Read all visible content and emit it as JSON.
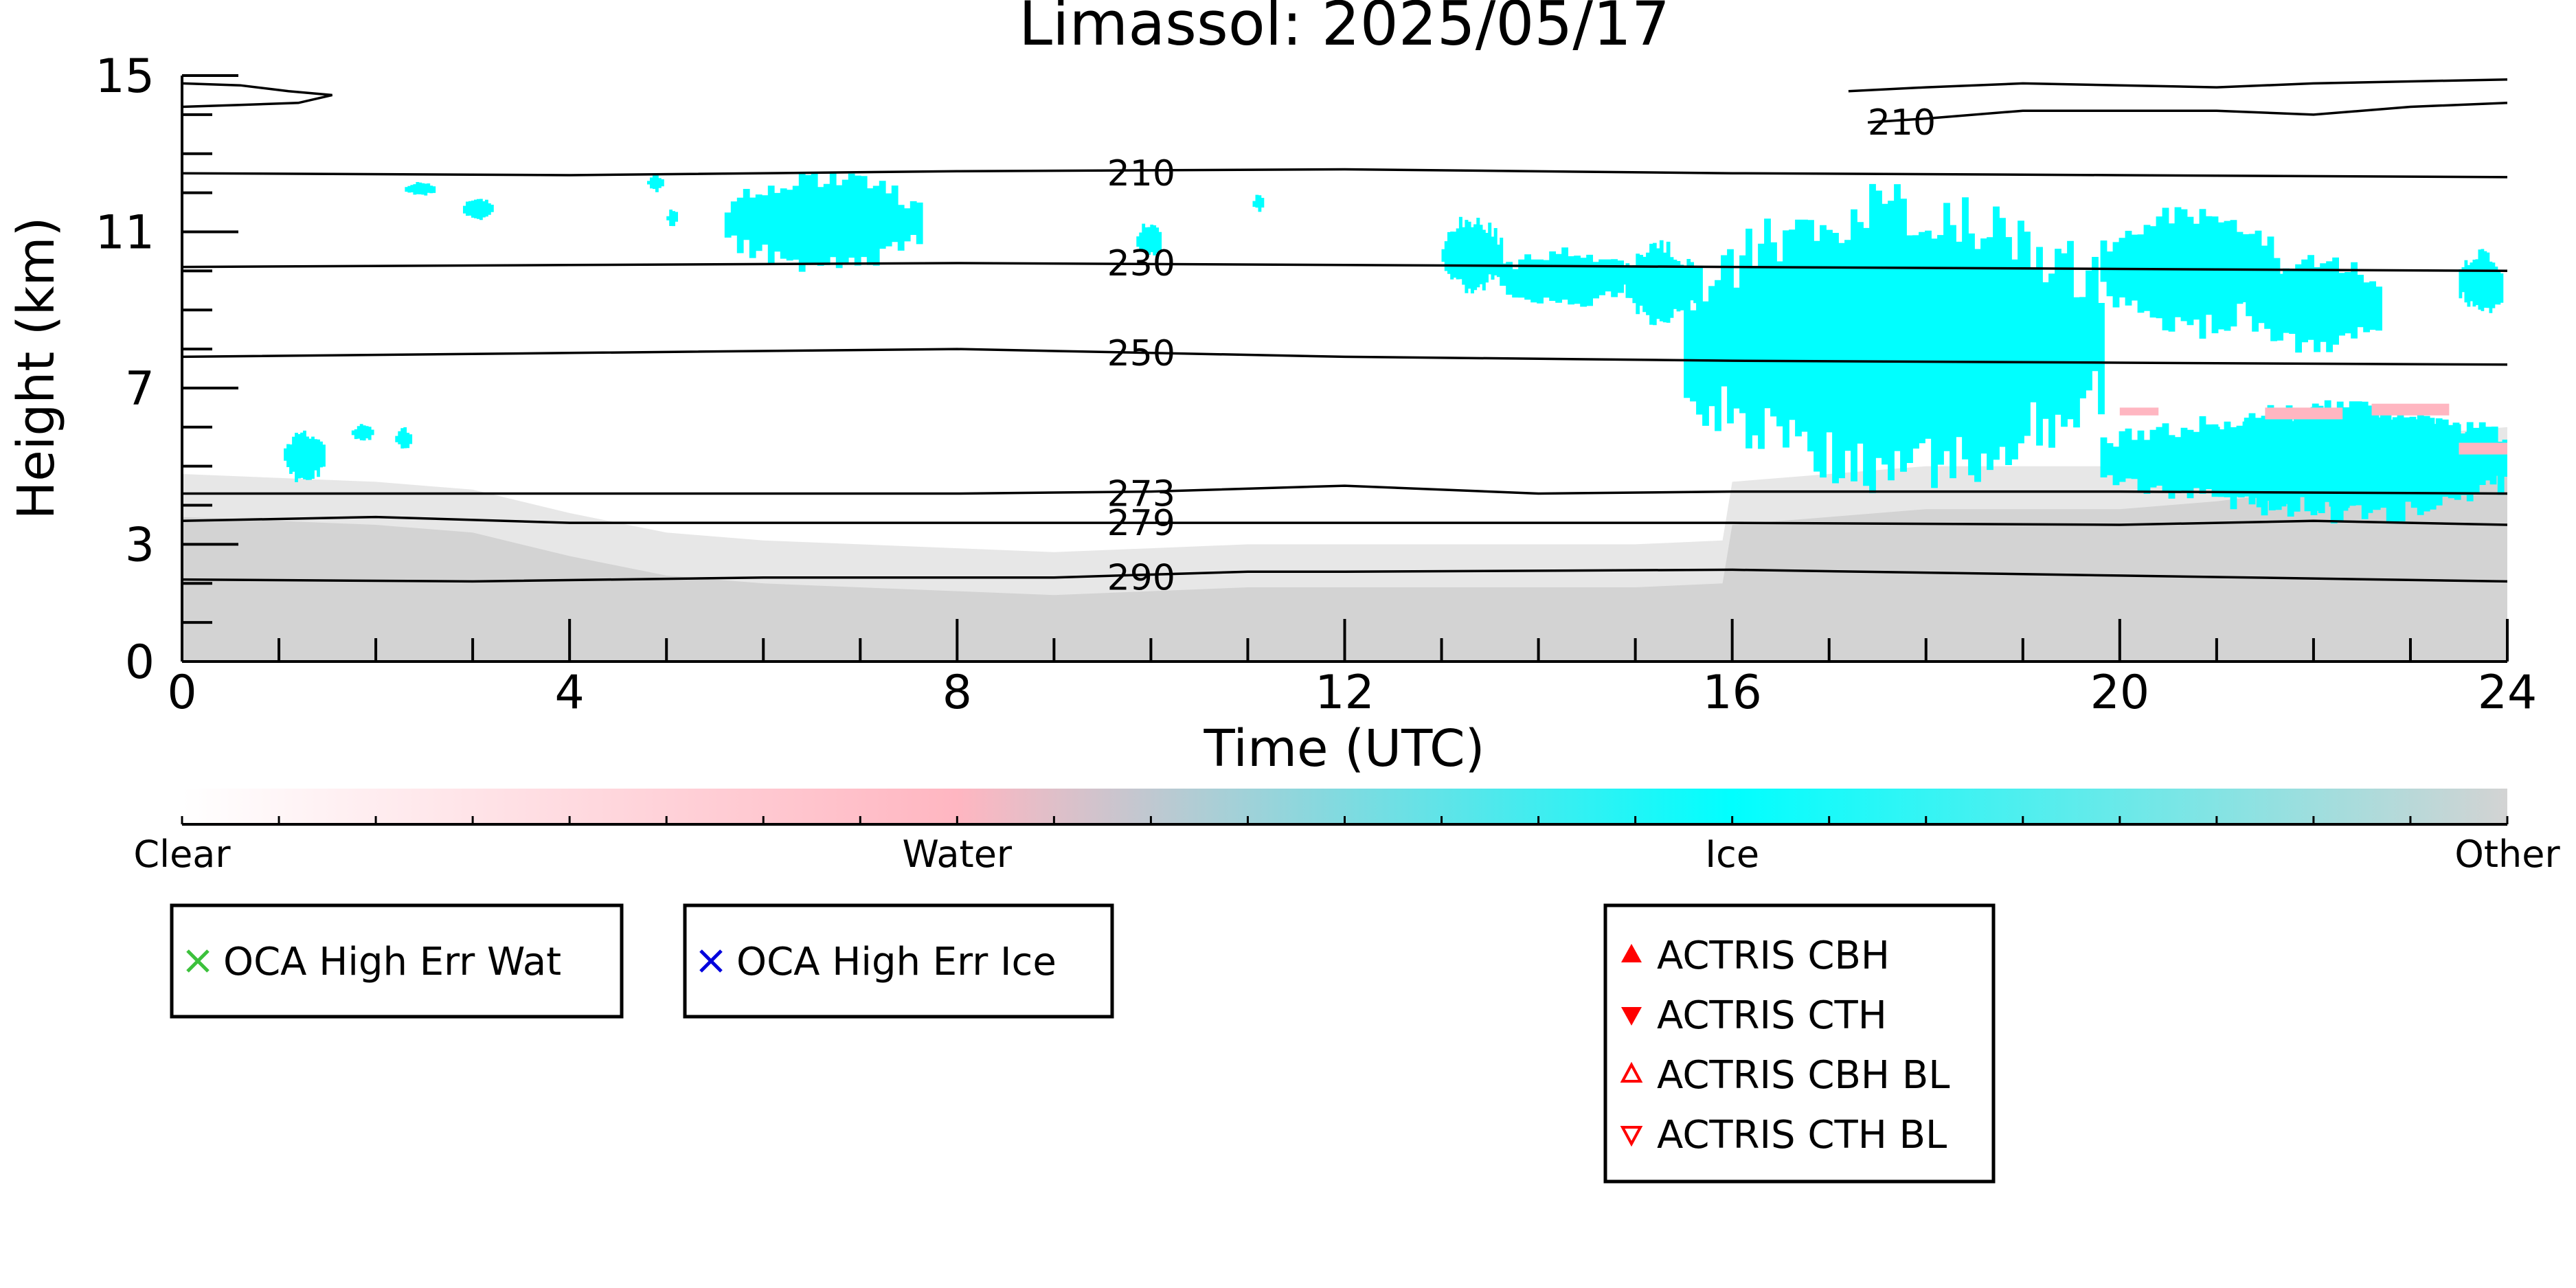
{
  "chart_data": {
    "type": "heatmap",
    "title": "Limassol: 2025/05/17",
    "xlabel": "Time (UTC)",
    "ylabel": "Height (km)",
    "xlim": [
      0,
      24
    ],
    "ylim": [
      0,
      15
    ],
    "x_ticks": [
      "0",
      "4",
      "8",
      "12",
      "16",
      "20",
      "24"
    ],
    "y_ticks": [
      "0",
      "3",
      "7",
      "11",
      "15"
    ],
    "grid": false,
    "colorbar": {
      "labels": [
        "Clear",
        "Water",
        "Ice",
        "Other"
      ],
      "colors": [
        "#ffffff",
        "#ffb6c1",
        "#00ffff",
        "#d3d3d3"
      ]
    },
    "categories": [
      "Clear",
      "Water",
      "Ice",
      "Other"
    ],
    "category_colors": {
      "Clear": "#ffffff",
      "Water": "#ffb6c1",
      "Ice": "#00ffff",
      "Other": "#d3d3d3"
    },
    "other_region_top_km": [
      [
        0,
        4.8
      ],
      [
        1,
        4.7
      ],
      [
        2,
        4.6
      ],
      [
        3,
        4.4
      ],
      [
        4,
        3.8
      ],
      [
        5,
        3.3
      ],
      [
        6,
        3.1
      ],
      [
        7,
        3.0
      ],
      [
        8,
        2.9
      ],
      [
        9,
        2.8
      ],
      [
        10,
        2.9
      ],
      [
        11,
        3.0
      ],
      [
        12,
        3.0
      ],
      [
        13,
        3.0
      ],
      [
        14,
        3.0
      ],
      [
        15,
        3.0
      ],
      [
        15.9,
        3.1
      ],
      [
        16,
        4.6
      ],
      [
        17,
        4.8
      ],
      [
        18,
        5.0
      ],
      [
        19,
        5.0
      ],
      [
        20,
        5.0
      ],
      [
        21,
        5.2
      ],
      [
        22,
        5.5
      ],
      [
        23,
        5.8
      ],
      [
        24,
        6.0
      ]
    ],
    "ice_cloud_regions": [
      {
        "x": [
          1.05,
          1.45
        ],
        "y": [
          4.5,
          6.0
        ]
      },
      {
        "x": [
          1.75,
          1.95
        ],
        "y": [
          5.6,
          6.1
        ]
      },
      {
        "x": [
          2.2,
          2.35
        ],
        "y": [
          5.4,
          6.0
        ]
      },
      {
        "x": [
          2.3,
          2.6
        ],
        "y": [
          11.9,
          12.3
        ]
      },
      {
        "x": [
          2.9,
          3.2
        ],
        "y": [
          11.3,
          11.9
        ]
      },
      {
        "x": [
          4.8,
          4.95
        ],
        "y": [
          12.0,
          12.5
        ]
      },
      {
        "x": [
          5.0,
          5.1
        ],
        "y": [
          11.1,
          11.6
        ]
      },
      {
        "x": [
          5.6,
          7.6
        ],
        "y": [
          9.9,
          12.6
        ]
      },
      {
        "x": [
          9.85,
          10.1
        ],
        "y": [
          10.3,
          11.3
        ]
      },
      {
        "x": [
          11.05,
          11.15
        ],
        "y": [
          11.5,
          12.0
        ]
      },
      {
        "x": [
          13.0,
          13.6
        ],
        "y": [
          9.3,
          11.5
        ]
      },
      {
        "x": [
          13.6,
          14.9
        ],
        "y": [
          9.0,
          10.6
        ]
      },
      {
        "x": [
          14.9,
          15.6
        ],
        "y": [
          8.5,
          10.8
        ]
      },
      {
        "x": [
          15.5,
          19.8
        ],
        "y": [
          4.2,
          12.3
        ]
      },
      {
        "x": [
          16.0,
          16.6
        ],
        "y": [
          7.0,
          8.3
        ]
      },
      {
        "x": [
          19.8,
          21.6
        ],
        "y": [
          8.2,
          11.8
        ]
      },
      {
        "x": [
          21.3,
          22.7
        ],
        "y": [
          7.8,
          10.5
        ]
      },
      {
        "x": [
          19.8,
          24.0
        ],
        "y": [
          3.7,
          6.6
        ]
      },
      {
        "x": [
          20.9,
          24.0
        ],
        "y": [
          3.5,
          6.8
        ]
      },
      {
        "x": [
          23.5,
          23.95
        ],
        "y": [
          8.8,
          10.6
        ]
      }
    ],
    "water_patches": [
      {
        "x": [
          20.0,
          20.4
        ],
        "y": [
          6.3,
          6.5
        ]
      },
      {
        "x": [
          21.5,
          22.3
        ],
        "y": [
          6.2,
          6.5
        ]
      },
      {
        "x": [
          22.6,
          23.4
        ],
        "y": [
          6.3,
          6.6
        ]
      },
      {
        "x": [
          23.5,
          24.0
        ],
        "y": [
          5.3,
          5.6
        ]
      }
    ],
    "temperature_contours": [
      {
        "label": "210",
        "points": [
          [
            0,
            12.5
          ],
          [
            4,
            12.45
          ],
          [
            8,
            12.55
          ],
          [
            12,
            12.6
          ],
          [
            16,
            12.5
          ],
          [
            20,
            12.45
          ],
          [
            24,
            12.4
          ]
        ]
      },
      {
        "label": "230",
        "points": [
          [
            0,
            10.1
          ],
          [
            4,
            10.15
          ],
          [
            8,
            10.2
          ],
          [
            12,
            10.15
          ],
          [
            16,
            10.1
          ],
          [
            20,
            10.05
          ],
          [
            24,
            10.0
          ]
        ]
      },
      {
        "label": "250",
        "points": [
          [
            0,
            7.8
          ],
          [
            4,
            7.9
          ],
          [
            8,
            8.0
          ],
          [
            12,
            7.8
          ],
          [
            16,
            7.7
          ],
          [
            20,
            7.65
          ],
          [
            24,
            7.6
          ]
        ]
      },
      {
        "label": "273",
        "points": [
          [
            0,
            4.3
          ],
          [
            4,
            4.3
          ],
          [
            8,
            4.3
          ],
          [
            10,
            4.35
          ],
          [
            12,
            4.5
          ],
          [
            14,
            4.3
          ],
          [
            16,
            4.35
          ],
          [
            20,
            4.35
          ],
          [
            24,
            4.3
          ]
        ]
      },
      {
        "label": "279",
        "points": [
          [
            0,
            3.6
          ],
          [
            2,
            3.7
          ],
          [
            4,
            3.55
          ],
          [
            8,
            3.55
          ],
          [
            12,
            3.55
          ],
          [
            16,
            3.55
          ],
          [
            20,
            3.5
          ],
          [
            22,
            3.6
          ],
          [
            24,
            3.5
          ]
        ]
      },
      {
        "label": "290",
        "points": [
          [
            0,
            2.1
          ],
          [
            3,
            2.05
          ],
          [
            6,
            2.15
          ],
          [
            9,
            2.15
          ],
          [
            11,
            2.3
          ],
          [
            12,
            2.3
          ],
          [
            16,
            2.35
          ],
          [
            20,
            2.2
          ],
          [
            24,
            2.05
          ]
        ]
      },
      {
        "label": "210",
        "points": [
          [
            17.4,
            13.8
          ],
          [
            18,
            13.9
          ],
          [
            19,
            14.1
          ],
          [
            21,
            14.1
          ],
          [
            22,
            14.0
          ],
          [
            23,
            14.2
          ],
          [
            24,
            14.3
          ]
        ]
      },
      {
        "label": "",
        "points": [
          [
            17.2,
            14.6
          ],
          [
            18,
            14.7
          ],
          [
            19,
            14.8
          ],
          [
            20,
            14.75
          ],
          [
            21,
            14.7
          ],
          [
            22,
            14.8
          ],
          [
            23,
            14.85
          ],
          [
            24,
            14.9
          ]
        ]
      },
      {
        "label": "",
        "points": [
          [
            0,
            14.8
          ],
          [
            0.6,
            14.75
          ],
          [
            1.1,
            14.6
          ],
          [
            1.55,
            14.5
          ],
          [
            1.2,
            14.3
          ],
          [
            0.6,
            14.25
          ],
          [
            0,
            14.2
          ]
        ]
      }
    ],
    "contour_label_positions": [
      {
        "label": "210",
        "x": 9.9,
        "y": 12.5
      },
      {
        "label": "230",
        "x": 9.9,
        "y": 10.2
      },
      {
        "label": "250",
        "x": 9.9,
        "y": 7.9
      },
      {
        "label": "273",
        "x": 9.9,
        "y": 4.3
      },
      {
        "label": "279",
        "x": 9.9,
        "y": 3.55
      },
      {
        "label": "290",
        "x": 9.9,
        "y": 2.15
      },
      {
        "label": "210",
        "x": 17.75,
        "y": 13.8
      }
    ],
    "legends": [
      {
        "entries": [
          {
            "label": "OCA High Err Wat",
            "symbol": "x",
            "color": "#3cc13c"
          }
        ]
      },
      {
        "entries": [
          {
            "label": "OCA High Err Ice",
            "symbol": "x",
            "color": "#0000dd"
          }
        ]
      },
      {
        "entries": [
          {
            "label": "ACTRIS CBH",
            "symbol": "triangle-up-filled",
            "color": "#ff0000"
          },
          {
            "label": "ACTRIS CTH",
            "symbol": "triangle-down-filled",
            "color": "#ff0000"
          },
          {
            "label": "ACTRIS CBH BL",
            "symbol": "triangle-up-open",
            "color": "#ff0000"
          },
          {
            "label": "ACTRIS CTH BL",
            "symbol": "triangle-down-open",
            "color": "#ff0000"
          }
        ]
      }
    ]
  }
}
